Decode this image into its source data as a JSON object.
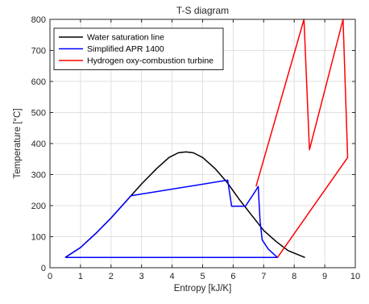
{
  "chart_data": {
    "type": "line",
    "title": "T-S diagram",
    "xlabel": "Entropy [kJ/K]",
    "ylabel": "Temperature [°C]",
    "xlim": [
      0,
      10
    ],
    "ylim": [
      0,
      800
    ],
    "xticks": [
      0,
      1,
      2,
      3,
      4,
      5,
      6,
      7,
      8,
      9,
      10
    ],
    "yticks": [
      0,
      100,
      200,
      300,
      400,
      500,
      600,
      700,
      800
    ],
    "grid": true,
    "legend_position": "top-left",
    "series": [
      {
        "name": "Water saturation line",
        "color": "#000000",
        "x": [
          0.5,
          1.0,
          1.5,
          2.0,
          2.5,
          3.0,
          3.5,
          3.9,
          4.2,
          4.45,
          4.7,
          5.0,
          5.4,
          5.8,
          6.2,
          6.6,
          7.0,
          7.4,
          7.8,
          8.35
        ],
        "y": [
          33,
          65,
          110,
          160,
          215,
          270,
          320,
          355,
          370,
          373,
          370,
          355,
          320,
          275,
          220,
          170,
          120,
          85,
          55,
          33
        ]
      },
      {
        "name": "Simplified APR 1400",
        "color": "#0000ff",
        "x": [
          0.5,
          1.0,
          1.5,
          2.0,
          2.5,
          2.65,
          5.82,
          5.95,
          6.4,
          6.55,
          6.75,
          6.82,
          6.88,
          6.95,
          7.15,
          7.45,
          0.5
        ],
        "y": [
          33,
          65,
          110,
          160,
          215,
          232,
          282,
          198,
          198,
          220,
          250,
          262,
          150,
          90,
          60,
          33,
          33
        ]
      },
      {
        "name": "Hydrogen oxy-combustion turbine",
        "color": "#ff0000",
        "x": [
          7.45,
          9.75,
          9.6,
          8.5,
          8.32,
          6.75
        ],
        "y": [
          33,
          355,
          800,
          380,
          800,
          262
        ]
      }
    ]
  }
}
